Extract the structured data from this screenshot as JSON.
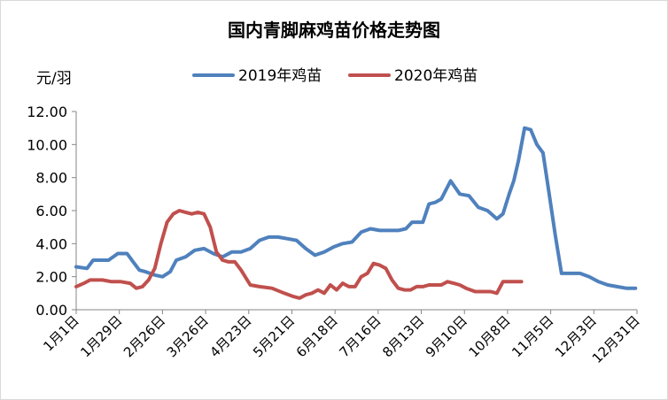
{
  "chart_data": {
    "type": "line",
    "title": "国内青脚麻鸡苗价格走势图",
    "unit_label": "元/羽",
    "xlabel": "",
    "ylabel": "元/羽",
    "ylim": [
      0,
      12
    ],
    "y_ticks": [
      "0.00",
      "2.00",
      "4.00",
      "6.00",
      "8.00",
      "10.00",
      "12.00"
    ],
    "x_ticks": [
      "1月1日",
      "1月29日",
      "2月26日",
      "3月26日",
      "4月23日",
      "5月21日",
      "6月18日",
      "7月16日",
      "8月13日",
      "9月10日",
      "10月8日",
      "11月5日",
      "12月3日",
      "12月31日"
    ],
    "grid": false,
    "legend": "top",
    "series": [
      {
        "name": "2019年鸡苗",
        "color": "#4f81bd",
        "x": [
          1,
          8,
          12,
          16,
          22,
          28,
          34,
          38,
          42,
          46,
          52,
          57,
          62,
          66,
          72,
          78,
          84,
          90,
          96,
          102,
          108,
          114,
          120,
          126,
          132,
          138,
          144,
          150,
          156,
          162,
          168,
          174,
          180,
          186,
          192,
          198,
          204,
          210,
          215,
          219,
          223,
          226,
          230,
          234,
          238,
          244,
          250,
          256,
          262,
          268,
          274,
          278,
          282,
          285,
          288,
          292,
          296,
          300,
          304,
          308,
          312,
          316,
          320,
          324,
          328,
          334,
          340,
          346,
          352,
          358,
          364
        ],
        "values": [
          2.6,
          2.5,
          3.0,
          3.0,
          3.0,
          3.4,
          3.4,
          2.9,
          2.4,
          2.3,
          2.1,
          2.0,
          2.3,
          3.0,
          3.2,
          3.6,
          3.7,
          3.4,
          3.2,
          3.5,
          3.5,
          3.7,
          4.2,
          4.4,
          4.4,
          4.3,
          4.2,
          3.7,
          3.3,
          3.5,
          3.8,
          4.0,
          4.1,
          4.7,
          4.9,
          4.8,
          4.8,
          4.8,
          4.9,
          5.3,
          5.3,
          5.3,
          6.4,
          6.5,
          6.7,
          7.8,
          7.0,
          6.9,
          6.2,
          6.0,
          5.5,
          5.8,
          7.0,
          7.8,
          9.0,
          11.0,
          10.9,
          10.0,
          9.5,
          7.0,
          4.5,
          2.2,
          2.2,
          2.2,
          2.2,
          2.0,
          1.7,
          1.5,
          1.4,
          1.3,
          1.3
        ]
      },
      {
        "name": "2020年鸡苗",
        "color": "#c0504d",
        "x": [
          1,
          6,
          10,
          14,
          18,
          24,
          30,
          36,
          40,
          44,
          48,
          52,
          56,
          60,
          64,
          68,
          72,
          76,
          80,
          84,
          88,
          92,
          96,
          100,
          104,
          108,
          114,
          120,
          128,
          136,
          142,
          146,
          150,
          154,
          158,
          162,
          166,
          170,
          174,
          178,
          182,
          186,
          190,
          194,
          198,
          202,
          206,
          210,
          214,
          218,
          222,
          226,
          230,
          234,
          238,
          242,
          246,
          250,
          254,
          260,
          266,
          270,
          274,
          278,
          282,
          286,
          290
        ],
        "values": [
          1.4,
          1.6,
          1.8,
          1.8,
          1.8,
          1.7,
          1.7,
          1.6,
          1.3,
          1.4,
          1.8,
          2.5,
          4.0,
          5.3,
          5.8,
          6.0,
          5.9,
          5.8,
          5.9,
          5.8,
          5.0,
          3.5,
          3.0,
          2.9,
          2.9,
          2.4,
          1.5,
          1.4,
          1.3,
          1.0,
          0.8,
          0.7,
          0.9,
          1.0,
          1.2,
          1.0,
          1.5,
          1.2,
          1.6,
          1.4,
          1.4,
          2.0,
          2.2,
          2.8,
          2.7,
          2.5,
          1.8,
          1.3,
          1.2,
          1.2,
          1.4,
          1.4,
          1.5,
          1.5,
          1.5,
          1.7,
          1.6,
          1.5,
          1.3,
          1.1,
          1.1,
          1.1,
          1.0,
          1.7,
          1.7,
          1.7,
          1.7
        ]
      }
    ]
  }
}
